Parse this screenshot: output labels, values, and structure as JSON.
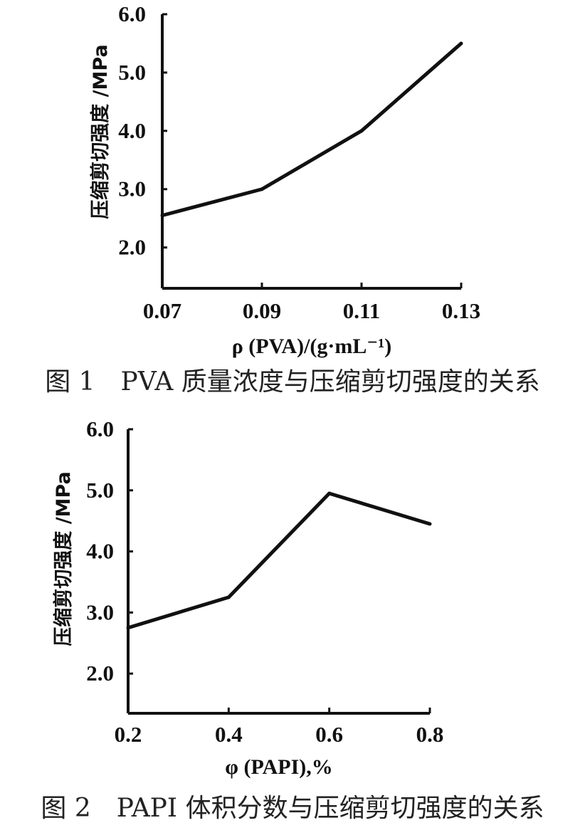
{
  "chart_data": [
    {
      "type": "line",
      "caption": "图 1　PVA 质量浓度与压缩剪切强度的关系",
      "xlabel": "ρ (PVA)/(g·mL⁻¹)",
      "ylabel": "压缩剪切强度 /MPa",
      "x_tick_labels": [
        "0.07",
        "0.09",
        "0.11",
        "0.13"
      ],
      "y_tick_labels": [
        "2.0",
        "3.0",
        "4.0",
        "5.0",
        "6.0"
      ],
      "xlim": [
        0.07,
        0.13
      ],
      "ylim": [
        1.3,
        6.0
      ],
      "series": [
        {
          "x": [
            0.07,
            0.09,
            0.11,
            0.13
          ],
          "y": [
            2.55,
            3.0,
            4.0,
            5.5
          ]
        }
      ]
    },
    {
      "type": "line",
      "caption": "图 2　PAPI 体积分数与压缩剪切强度的关系",
      "xlabel": "φ (PAPI),%",
      "ylabel": "压缩剪切强度 /MPa",
      "x_tick_labels": [
        "0.2",
        "0.4",
        "0.6",
        "0.8"
      ],
      "y_tick_labels": [
        "2.0",
        "3.0",
        "4.0",
        "5.0",
        "6.0"
      ],
      "xlim": [
        0.2,
        0.8
      ],
      "ylim": [
        1.35,
        6.0
      ],
      "series": [
        {
          "x": [
            0.2,
            0.4,
            0.6,
            0.8
          ],
          "y": [
            2.75,
            3.25,
            4.95,
            4.45
          ]
        }
      ]
    }
  ]
}
